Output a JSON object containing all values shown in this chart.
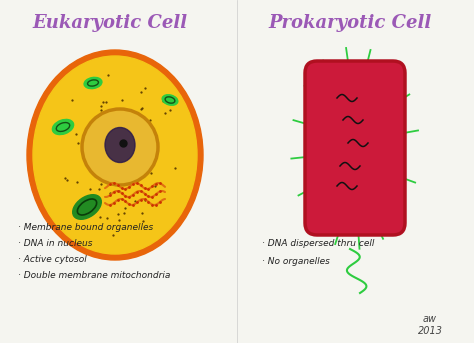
{
  "background_color": "#f5f5f0",
  "title_left": "Eukaryotic Cell",
  "title_right": "Prokaryotic Cell",
  "title_color": "#9b59b6",
  "title_fontsize": 13,
  "euk_bullets": [
    "· Membrane bound organelles",
    "· DNA in nucleus",
    "· Active cytosol",
    "· Double membrane mitochondria"
  ],
  "prok_bullets": [
    "· DNA dispersed thru cell",
    "· No organelles"
  ],
  "bullet_fontsize": 6.5,
  "bullet_color": "#222222",
  "euk_outer_color": "#e8650a",
  "euk_inner_color": "#f5c518",
  "euk_nucleus_ring_color": "#c4820a",
  "euk_nucleus_color": "#2c1a4a",
  "euk_er_color": "#e07010",
  "euk_organelle_color": "#2ecc40",
  "euk_mito_color": "#228B22",
  "prok_body_color": "#cc1a3a",
  "prok_border_color": "#b01020",
  "prok_flagella_color": "#2ecc40",
  "prok_dna_color": "#111111",
  "dot_color": "#5a3a00",
  "signature": "aw\n2013",
  "sig_color": "#444444"
}
